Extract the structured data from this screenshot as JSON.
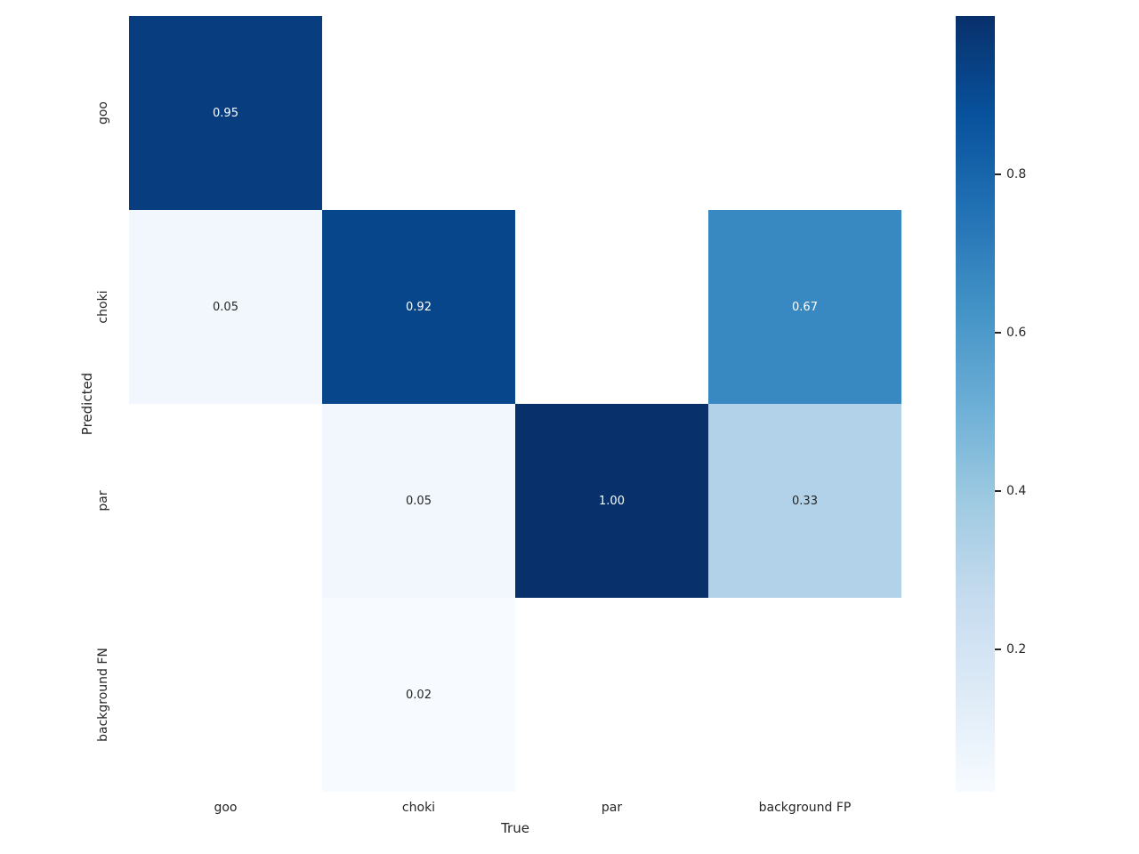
{
  "figure": {
    "background": "#ffffff",
    "text_color": "#262626"
  },
  "chart_data": {
    "type": "heatmap",
    "title": "",
    "xlabel": "True",
    "ylabel": "Predicted",
    "x_categories": [
      "goo",
      "choki",
      "par",
      "background FP"
    ],
    "y_categories": [
      "goo",
      "choki",
      "par",
      "background FN"
    ],
    "values": [
      [
        0.95,
        null,
        null,
        null
      ],
      [
        0.05,
        0.92,
        null,
        0.67
      ],
      [
        null,
        0.05,
        1.0,
        0.33
      ],
      [
        null,
        0.02,
        null,
        null
      ]
    ],
    "cells": [
      {
        "row": 0,
        "col": 0,
        "label": "0.95",
        "bg": "#083d7f",
        "fg": "#ffffff"
      },
      {
        "row": 1,
        "col": 0,
        "label": "0.05",
        "bg": "#f1f7fd",
        "fg": "#262626"
      },
      {
        "row": 1,
        "col": 1,
        "label": "0.92",
        "bg": "#08468b",
        "fg": "#ffffff"
      },
      {
        "row": 1,
        "col": 3,
        "label": "0.67",
        "bg": "#3888c1",
        "fg": "#ffffff"
      },
      {
        "row": 2,
        "col": 1,
        "label": "0.05",
        "bg": "#f1f7fd",
        "fg": "#262626"
      },
      {
        "row": 2,
        "col": 2,
        "label": "1.00",
        "bg": "#08306b",
        "fg": "#ffffff"
      },
      {
        "row": 2,
        "col": 3,
        "label": "0.33",
        "bg": "#b1d2e8",
        "fg": "#262626"
      },
      {
        "row": 3,
        "col": 1,
        "label": "0.02",
        "bg": "#f7fbff",
        "fg": "#262626"
      }
    ],
    "empty_cell_color": "#ffffff",
    "colormap": "Blues",
    "vmin": 0.02,
    "vmax": 1.0,
    "grid": false,
    "colorbar": {
      "position": "right",
      "gradient_top_to_bottom": [
        "#08306b",
        "#08519c",
        "#2171b5",
        "#4292c6",
        "#6baed6",
        "#9ecae1",
        "#c6dbef",
        "#deebf7",
        "#f7fbff"
      ],
      "ticks": [
        {
          "value": 0.8,
          "label": "0.8"
        },
        {
          "value": 0.6,
          "label": "0.6"
        },
        {
          "value": 0.4,
          "label": "0.4"
        },
        {
          "value": 0.2,
          "label": "0.2"
        }
      ]
    }
  }
}
